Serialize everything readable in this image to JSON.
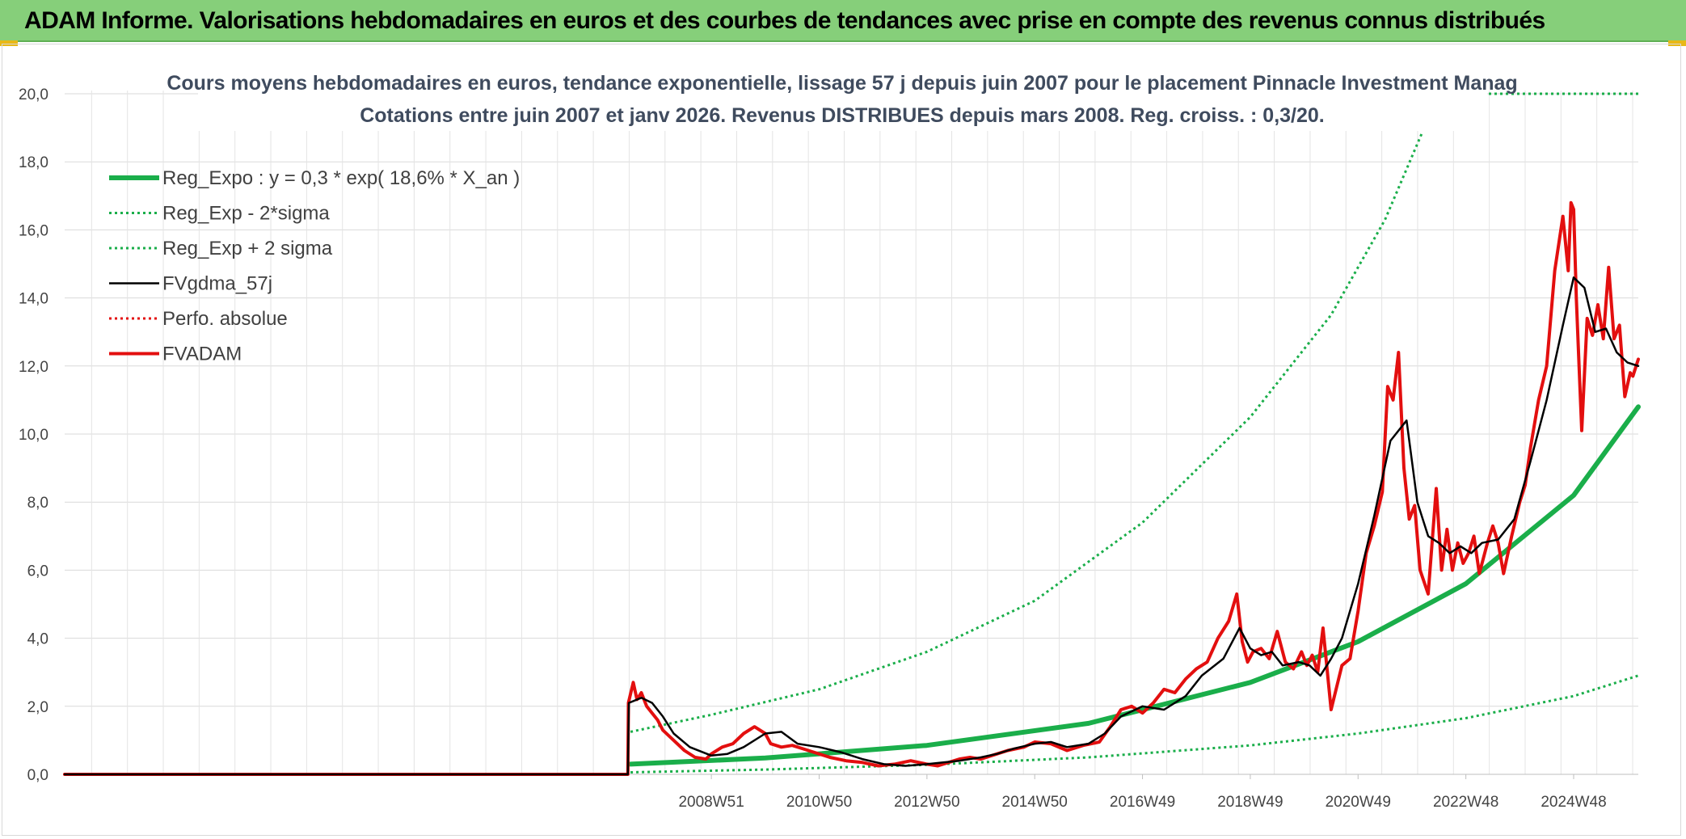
{
  "header": {
    "title": "ADAM Informe. Valorisations hebdomadaires en euros et des courbes de tendances avec prise en compte des revenus connus distribués"
  },
  "chart_data": {
    "type": "line",
    "title": "Cours moyens hebdomadaires en euros, tendance exponentielle, lissage 57 j depuis juin 2007 pour le placement Pinnacle Investment Manag",
    "subtitle": "Cotations entre juin 2007 et janv 2026. Revenus DISTRIBUES depuis mars 2008. Reg. croiss. : 0,3/20.",
    "xlabel": "",
    "ylabel": "",
    "ylim": [
      0,
      20
    ],
    "yticks": [
      "0,0",
      "2,0",
      "4,0",
      "6,0",
      "8,0",
      "10,0",
      "12,0",
      "14,0",
      "16,0",
      "18,0",
      "20,0"
    ],
    "xrange": [
      1997.0,
      2026.2
    ],
    "xticks": [
      {
        "x": 2009.0,
        "label": "2008W51"
      },
      {
        "x": 2011.0,
        "label": "2010W50"
      },
      {
        "x": 2013.0,
        "label": "2012W50"
      },
      {
        "x": 2015.0,
        "label": "2014W50"
      },
      {
        "x": 2017.0,
        "label": "2016W49"
      },
      {
        "x": 2019.0,
        "label": "2018W49"
      },
      {
        "x": 2021.0,
        "label": "2020W49"
      },
      {
        "x": 2023.0,
        "label": "2022W48"
      },
      {
        "x": 2025.0,
        "label": "2024W48"
      }
    ],
    "grid": true,
    "legend_position": "top-left",
    "colors": {
      "green": "#1aae4a",
      "black": "#000000",
      "red": "#e30f0f"
    },
    "series": [
      {
        "name": "Reg_Expo : y = 0,3 * exp( 18,6% *  X_an )",
        "color": "#1aae4a",
        "style": "solid-thick",
        "x": [
          2007.5,
          2010,
          2013,
          2016,
          2019,
          2021,
          2023,
          2025,
          2026.2
        ],
        "values": [
          0.3,
          0.48,
          0.85,
          1.5,
          2.7,
          3.9,
          5.6,
          8.2,
          10.8
        ]
      },
      {
        "name": "Reg_Exp - 2*sigma",
        "color": "#1aae4a",
        "style": "dotted",
        "x": [
          2007.5,
          2010,
          2013,
          2016,
          2019,
          2021,
          2023,
          2025,
          2026.2
        ],
        "values": [
          0.06,
          0.14,
          0.28,
          0.5,
          0.85,
          1.2,
          1.65,
          2.3,
          2.9
        ]
      },
      {
        "name": "Reg_Exp + 2 sigma",
        "color": "#1aae4a",
        "style": "dotted",
        "x": [
          2007.5,
          2009,
          2011,
          2013,
          2015,
          2017,
          2019,
          2020.5,
          2021.5,
          2022.2
        ],
        "values": [
          1.25,
          1.75,
          2.5,
          3.6,
          5.1,
          7.4,
          10.5,
          13.5,
          16.3,
          18.9
        ]
      },
      {
        "name": "FVgdma_57j",
        "color": "#000000",
        "style": "solid",
        "x": [
          1997.0,
          2007.45,
          2007.47,
          2007.7,
          2007.9,
          2008.1,
          2008.3,
          2008.6,
          2009.0,
          2009.3,
          2009.6,
          2010.0,
          2010.3,
          2010.6,
          2011.0,
          2011.4,
          2011.8,
          2012.2,
          2012.6,
          2013.0,
          2013.3,
          2013.6,
          2014.0,
          2014.3,
          2014.6,
          2015.0,
          2015.3,
          2015.6,
          2016.0,
          2016.3,
          2016.6,
          2017.0,
          2017.4,
          2017.8,
          2018.1,
          2018.5,
          2018.8,
          2019.0,
          2019.2,
          2019.4,
          2019.6,
          2019.9,
          2020.1,
          2020.3,
          2020.5,
          2020.7,
          2021.0,
          2021.3,
          2021.6,
          2021.9,
          2022.1,
          2022.3,
          2022.5,
          2022.7,
          2022.9,
          2023.1,
          2023.3,
          2023.6,
          2023.9,
          2024.2,
          2024.5,
          2024.8,
          2025.0,
          2025.2,
          2025.4,
          2025.6,
          2025.8,
          2026.0,
          2026.2
        ],
        "values": [
          0.0,
          0.0,
          2.1,
          2.25,
          2.1,
          1.7,
          1.2,
          0.8,
          0.55,
          0.6,
          0.8,
          1.2,
          1.25,
          0.9,
          0.8,
          0.65,
          0.45,
          0.3,
          0.25,
          0.3,
          0.35,
          0.4,
          0.5,
          0.6,
          0.75,
          0.9,
          0.95,
          0.8,
          0.9,
          1.2,
          1.7,
          2.0,
          1.9,
          2.3,
          2.9,
          3.4,
          4.3,
          3.7,
          3.5,
          3.6,
          3.2,
          3.3,
          3.2,
          2.9,
          3.4,
          4.0,
          5.6,
          7.6,
          9.8,
          10.4,
          8.0,
          7.0,
          6.8,
          6.5,
          6.7,
          6.5,
          6.8,
          6.9,
          7.5,
          9.2,
          11.0,
          13.2,
          14.6,
          14.3,
          13.0,
          13.1,
          12.4,
          12.1,
          12.0
        ]
      },
      {
        "name": "Perfo. absolue",
        "color": "#e30f0f",
        "style": "dotted",
        "x": [
          2007.45,
          2007.47
        ],
        "values": [
          0.0,
          0.0
        ]
      },
      {
        "name": "FVADAM",
        "color": "#e30f0f",
        "style": "solid-thick",
        "x": [
          1997.0,
          2007.45,
          2007.46,
          2007.55,
          2007.62,
          2007.7,
          2007.8,
          2007.9,
          2008.0,
          2008.1,
          2008.3,
          2008.5,
          2008.7,
          2008.9,
          2009.0,
          2009.2,
          2009.4,
          2009.6,
          2009.8,
          2010.0,
          2010.1,
          2010.3,
          2010.5,
          2010.7,
          2010.9,
          2011.2,
          2011.5,
          2011.8,
          2012.1,
          2012.4,
          2012.7,
          2013.0,
          2013.2,
          2013.4,
          2013.6,
          2013.8,
          2014.0,
          2014.2,
          2014.5,
          2014.8,
          2015.0,
          2015.3,
          2015.6,
          2015.9,
          2016.2,
          2016.4,
          2016.6,
          2016.8,
          2017.0,
          2017.2,
          2017.4,
          2017.6,
          2017.8,
          2018.0,
          2018.2,
          2018.4,
          2018.6,
          2018.75,
          2018.85,
          2018.95,
          2019.05,
          2019.2,
          2019.35,
          2019.5,
          2019.65,
          2019.8,
          2019.95,
          2020.05,
          2020.15,
          2020.25,
          2020.35,
          2020.5,
          2020.7,
          2020.85,
          2021.0,
          2021.15,
          2021.3,
          2021.45,
          2021.55,
          2021.65,
          2021.75,
          2021.85,
          2021.95,
          2022.05,
          2022.15,
          2022.3,
          2022.45,
          2022.55,
          2022.65,
          2022.75,
          2022.85,
          2022.95,
          2023.05,
          2023.15,
          2023.25,
          2023.4,
          2023.5,
          2023.6,
          2023.7,
          2023.85,
          2024.0,
          2024.1,
          2024.2,
          2024.35,
          2024.5,
          2024.65,
          2024.8,
          2024.9,
          2024.95,
          2025.0,
          2025.05,
          2025.1,
          2025.15,
          2025.25,
          2025.35,
          2025.45,
          2025.55,
          2025.65,
          2025.75,
          2025.85,
          2025.95,
          2026.05,
          2026.1,
          2026.2
        ],
        "values": [
          0.0,
          0.0,
          2.1,
          2.7,
          2.2,
          2.4,
          2.0,
          1.8,
          1.6,
          1.3,
          1.0,
          0.7,
          0.5,
          0.45,
          0.6,
          0.8,
          0.9,
          1.2,
          1.4,
          1.2,
          0.9,
          0.8,
          0.85,
          0.75,
          0.65,
          0.5,
          0.4,
          0.35,
          0.25,
          0.3,
          0.4,
          0.3,
          0.25,
          0.35,
          0.45,
          0.5,
          0.45,
          0.55,
          0.7,
          0.8,
          0.95,
          0.9,
          0.7,
          0.85,
          0.95,
          1.4,
          1.9,
          2.0,
          1.8,
          2.1,
          2.5,
          2.4,
          2.8,
          3.1,
          3.3,
          4.0,
          4.5,
          5.3,
          3.9,
          3.3,
          3.6,
          3.7,
          3.4,
          4.2,
          3.3,
          3.1,
          3.6,
          3.2,
          3.5,
          3.0,
          4.3,
          1.9,
          3.2,
          3.4,
          4.8,
          6.5,
          7.3,
          8.3,
          11.4,
          11.0,
          12.4,
          9.0,
          7.5,
          7.9,
          6.0,
          5.3,
          8.4,
          6.0,
          7.2,
          6.0,
          6.8,
          6.2,
          6.5,
          7.0,
          5.9,
          6.8,
          7.3,
          6.8,
          5.9,
          7.0,
          8.0,
          8.5,
          9.6,
          11.0,
          12.0,
          14.8,
          16.4,
          14.8,
          16.8,
          16.6,
          14.0,
          12.0,
          10.1,
          13.4,
          12.9,
          13.8,
          12.8,
          14.9,
          12.8,
          13.2,
          11.1,
          11.8,
          11.7,
          12.2
        ]
      }
    ]
  }
}
